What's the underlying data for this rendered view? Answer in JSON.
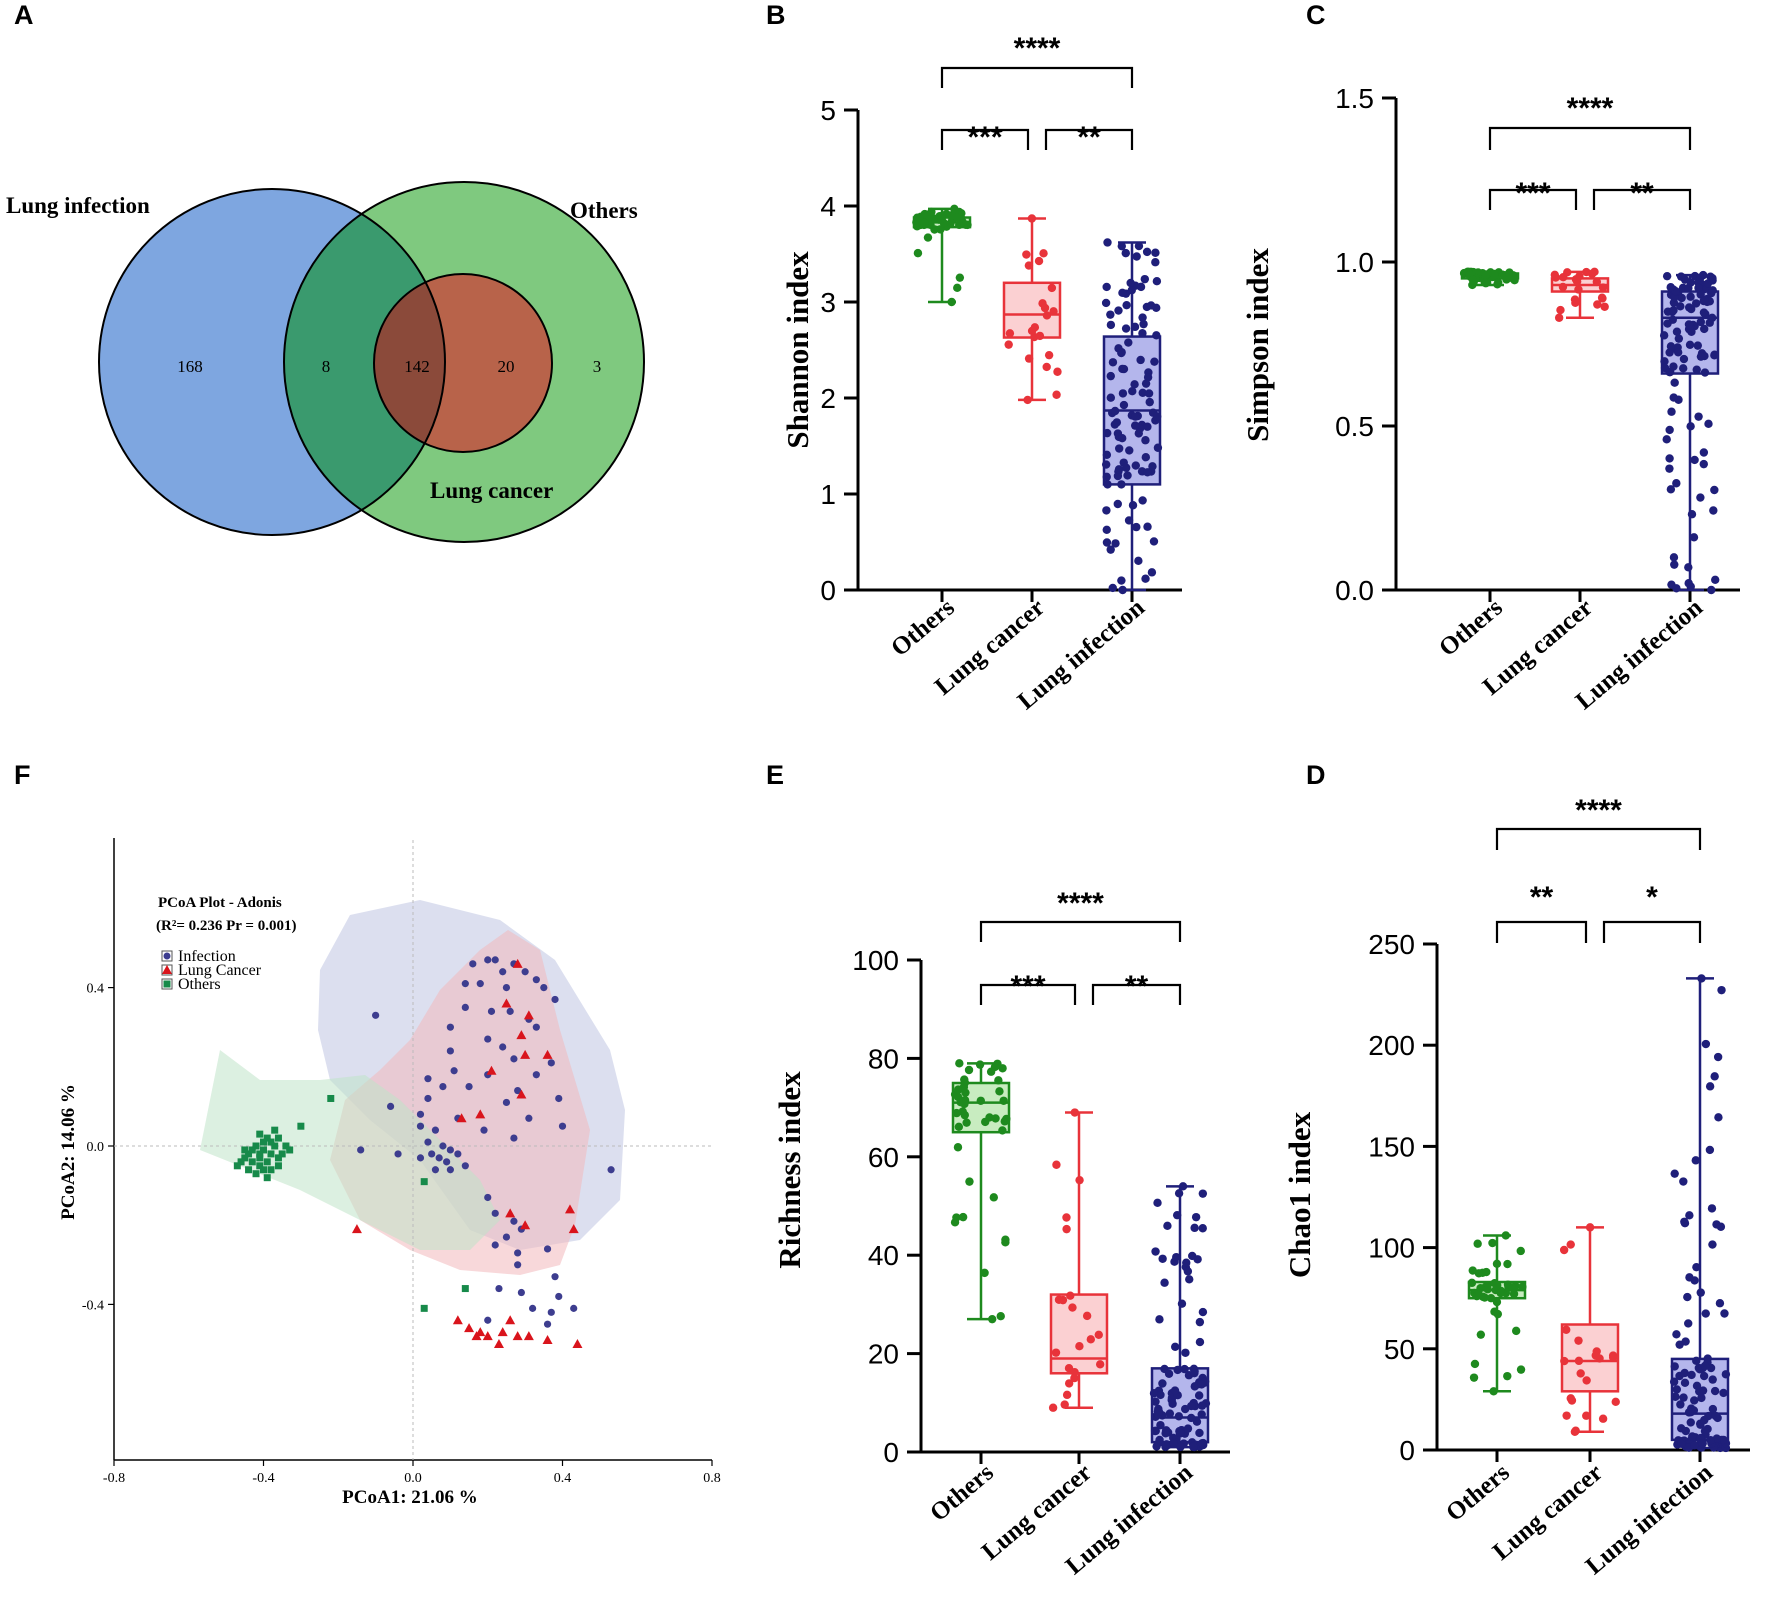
{
  "panels": {
    "A": "A",
    "B": "B",
    "C": "C",
    "D": "D",
    "E": "E",
    "F": "F"
  },
  "colors": {
    "others": "#1e8a1e",
    "cancer": "#e8333a",
    "infection": "#1f1f7a",
    "venn_blue": "#7ea6e0",
    "venn_green": "#7fc97f",
    "venn_overlap": "#3a9a6e",
    "venn_cancer_core": "#b8634a",
    "venn_cancer_overlap": "#8b4a3a"
  },
  "venn": {
    "label_infection": "Lung infection",
    "label_others": "Others",
    "label_cancer": "Lung cancer",
    "count_infection_only": "168",
    "count_infection_others": "8",
    "count_all": "142",
    "count_cancer_others": "20",
    "count_others_only": "3"
  },
  "chart_data": [
    {
      "id": "B",
      "type": "box",
      "ylabel": "Shannon index",
      "ylim": [
        0,
        5
      ],
      "yticks": [
        0,
        1,
        2,
        3,
        4,
        5
      ],
      "categories": [
        "Others",
        "Lung cancer",
        "Lung infection"
      ],
      "boxes": [
        {
          "min": 3.0,
          "q1": 3.78,
          "median": 3.83,
          "q3": 3.88,
          "max": 3.97,
          "n": 45
        },
        {
          "min": 1.98,
          "q1": 2.63,
          "median": 2.87,
          "q3": 3.2,
          "max": 3.87,
          "n": 22
        },
        {
          "min": 0.0,
          "q1": 1.1,
          "median": 1.87,
          "q3": 2.64,
          "max": 3.62,
          "n": 110
        }
      ],
      "significance": [
        {
          "from": 0,
          "to": 1,
          "label": "***"
        },
        {
          "from": 1,
          "to": 2,
          "label": "**"
        },
        {
          "from": 0,
          "to": 2,
          "label": "****"
        }
      ]
    },
    {
      "id": "C",
      "type": "box",
      "ylabel": "Simpson index",
      "ylim": [
        0,
        1.5
      ],
      "yticks": [
        "0.0",
        "0.5",
        "1.0",
        "1.5"
      ],
      "categories": [
        "Others",
        "Lung cancer",
        "Lung infection"
      ],
      "boxes": [
        {
          "min": 0.93,
          "q1": 0.95,
          "median": 0.96,
          "q3": 0.965,
          "max": 0.97,
          "n": 45
        },
        {
          "min": 0.83,
          "q1": 0.91,
          "median": 0.93,
          "q3": 0.95,
          "max": 0.97,
          "n": 22
        },
        {
          "min": 0.0,
          "q1": 0.66,
          "median": 0.83,
          "q3": 0.91,
          "max": 0.96,
          "n": 110
        }
      ],
      "significance": [
        {
          "from": 0,
          "to": 1,
          "label": "***"
        },
        {
          "from": 1,
          "to": 2,
          "label": "**"
        },
        {
          "from": 0,
          "to": 2,
          "label": "****"
        }
      ]
    },
    {
      "id": "E",
      "type": "box",
      "ylabel": "Richness index",
      "ylim": [
        0,
        100
      ],
      "yticks": [
        0,
        20,
        40,
        60,
        80,
        100
      ],
      "categories": [
        "Others",
        "Lung cancer",
        "Lung infection"
      ],
      "boxes": [
        {
          "min": 27,
          "q1": 65,
          "median": 71,
          "q3": 75,
          "max": 79,
          "n": 45
        },
        {
          "min": 9,
          "q1": 16,
          "median": 19,
          "q3": 32,
          "max": 69,
          "n": 22
        },
        {
          "min": 1,
          "q1": 2,
          "median": 7,
          "q3": 17,
          "max": 54,
          "n": 110
        }
      ],
      "significance": [
        {
          "from": 0,
          "to": 1,
          "label": "***"
        },
        {
          "from": 1,
          "to": 2,
          "label": "**"
        },
        {
          "from": 0,
          "to": 2,
          "label": "****"
        }
      ]
    },
    {
      "id": "D",
      "type": "box",
      "ylabel": "Chao1 index",
      "ylim": [
        0,
        250
      ],
      "yticks": [
        0,
        50,
        100,
        150,
        200,
        250
      ],
      "categories": [
        "Others",
        "Lung cancer",
        "Lung infection"
      ],
      "boxes": [
        {
          "min": 29,
          "q1": 75,
          "median": 79,
          "q3": 83,
          "max": 106,
          "n": 45
        },
        {
          "min": 9,
          "q1": 29,
          "median": 44,
          "q3": 62,
          "max": 110,
          "n": 22
        },
        {
          "min": 1,
          "q1": 5,
          "median": 18,
          "q3": 45,
          "max": 233,
          "n": 110
        }
      ],
      "significance": [
        {
          "from": 0,
          "to": 1,
          "label": "**"
        },
        {
          "from": 1,
          "to": 2,
          "label": "*"
        },
        {
          "from": 0,
          "to": 2,
          "label": "****"
        }
      ]
    },
    {
      "id": "F",
      "type": "scatter",
      "title": "PCoA Plot - Adonis",
      "stats_text": "(R²= 0.236    Pr = 0.001)",
      "xlabel": "PCoA1:  21.06 %",
      "ylabel": "PCoA2:  14.06 %",
      "xlim": [
        -0.8,
        0.8
      ],
      "ylim": [
        -0.8,
        0.8
      ],
      "xticks": [
        "-0.8",
        "-0.4",
        "0.0",
        "0.4",
        "0.8"
      ],
      "yticks": [
        "0.4",
        "0.0",
        "-0.4"
      ],
      "legend": [
        "Infection",
        "Lung Cancer",
        "Others"
      ],
      "series": [
        {
          "name": "Infection",
          "points": [
            [
              0.2,
              0.47
            ],
            [
              0.22,
              0.47
            ],
            [
              0.16,
              0.46
            ],
            [
              0.27,
              0.46
            ],
            [
              0.24,
              0.44
            ],
            [
              0.3,
              0.44
            ],
            [
              0.33,
              0.42
            ],
            [
              0.14,
              0.41
            ],
            [
              0.18,
              0.41
            ],
            [
              0.25,
              0.4
            ],
            [
              0.35,
              0.4
            ],
            [
              0.38,
              0.37
            ],
            [
              0.14,
              0.35
            ],
            [
              0.21,
              0.34
            ],
            [
              0.26,
              0.34
            ],
            [
              0.31,
              0.32
            ],
            [
              0.1,
              0.3
            ],
            [
              0.33,
              0.3
            ],
            [
              -0.1,
              0.33
            ],
            [
              0.2,
              0.27
            ],
            [
              0.24,
              0.25
            ],
            [
              0.1,
              0.24
            ],
            [
              0.27,
              0.22
            ],
            [
              0.37,
              0.21
            ],
            [
              0.11,
              0.19
            ],
            [
              0.2,
              0.18
            ],
            [
              0.33,
              0.18
            ],
            [
              0.04,
              0.17
            ],
            [
              0.08,
              0.15
            ],
            [
              0.15,
              0.15
            ],
            [
              0.28,
              0.14
            ],
            [
              0.39,
              0.12
            ],
            [
              0.04,
              0.12
            ],
            [
              0.25,
              0.11
            ],
            [
              0.02,
              0.08
            ],
            [
              0.12,
              0.07
            ],
            [
              0.31,
              0.07
            ],
            [
              0.4,
              0.05
            ],
            [
              -0.06,
              0.1
            ],
            [
              0.02,
              0.05
            ],
            [
              0.06,
              0.04
            ],
            [
              0.19,
              0.04
            ],
            [
              0.27,
              0.02
            ],
            [
              0.04,
              0.01
            ],
            [
              0.08,
              0.0
            ],
            [
              0.1,
              -0.01
            ],
            [
              0.05,
              -0.02
            ],
            [
              0.07,
              -0.03
            ],
            [
              0.09,
              -0.04
            ],
            [
              0.12,
              -0.02
            ],
            [
              -0.04,
              -0.02
            ],
            [
              0.06,
              -0.06
            ],
            [
              0.1,
              -0.06
            ],
            [
              0.14,
              -0.05
            ],
            [
              0.02,
              -0.03
            ],
            [
              -0.14,
              -0.01
            ],
            [
              0.53,
              -0.06
            ],
            [
              0.2,
              -0.13
            ],
            [
              0.22,
              -0.17
            ],
            [
              0.27,
              -0.19
            ],
            [
              0.25,
              -0.23
            ],
            [
              0.28,
              -0.27
            ],
            [
              0.28,
              -0.3
            ],
            [
              0.23,
              -0.36
            ],
            [
              0.29,
              -0.37
            ],
            [
              0.39,
              -0.38
            ],
            [
              0.32,
              -0.41
            ],
            [
              0.37,
              -0.42
            ],
            [
              0.36,
              -0.45
            ],
            [
              0.2,
              -0.44
            ],
            [
              0.38,
              -0.33
            ],
            [
              0.22,
              -0.25
            ],
            [
              0.29,
              -0.21
            ],
            [
              0.36,
              -0.26
            ],
            [
              0.43,
              -0.41
            ]
          ]
        },
        {
          "name": "Lung Cancer",
          "points": [
            [
              0.28,
              0.46
            ],
            [
              0.25,
              0.36
            ],
            [
              0.31,
              0.33
            ],
            [
              0.29,
              0.28
            ],
            [
              0.3,
              0.23
            ],
            [
              0.36,
              0.23
            ],
            [
              0.21,
              0.19
            ],
            [
              0.29,
              0.13
            ],
            [
              0.13,
              0.07
            ],
            [
              0.18,
              0.08
            ],
            [
              0.26,
              -0.17
            ],
            [
              0.42,
              -0.16
            ],
            [
              0.43,
              -0.21
            ],
            [
              0.3,
              -0.2
            ],
            [
              -0.15,
              -0.21
            ],
            [
              0.12,
              -0.44
            ],
            [
              0.15,
              -0.46
            ],
            [
              0.18,
              -0.47
            ],
            [
              0.17,
              -0.48
            ],
            [
              0.2,
              -0.48
            ],
            [
              0.24,
              -0.47
            ],
            [
              0.26,
              -0.44
            ],
            [
              0.28,
              -0.48
            ],
            [
              0.31,
              -0.48
            ],
            [
              0.36,
              -0.49
            ],
            [
              0.44,
              -0.5
            ],
            [
              0.23,
              -0.5
            ]
          ]
        },
        {
          "name": "Others",
          "points": [
            [
              -0.4,
              0.01
            ],
            [
              -0.42,
              0.0
            ],
            [
              -0.44,
              -0.02
            ],
            [
              -0.41,
              -0.03
            ],
            [
              -0.39,
              -0.04
            ],
            [
              -0.43,
              -0.04
            ],
            [
              -0.45,
              -0.03
            ],
            [
              -0.38,
              -0.02
            ],
            [
              -0.36,
              -0.03
            ],
            [
              -0.37,
              0.0
            ],
            [
              -0.39,
              0.02
            ],
            [
              -0.41,
              -0.05
            ],
            [
              -0.43,
              -0.01
            ],
            [
              -0.46,
              -0.04
            ],
            [
              -0.4,
              -0.06
            ],
            [
              -0.38,
              -0.06
            ],
            [
              -0.36,
              -0.05
            ],
            [
              -0.44,
              -0.06
            ],
            [
              -0.42,
              -0.07
            ],
            [
              -0.39,
              -0.08
            ],
            [
              -0.36,
              0.02
            ],
            [
              -0.34,
              0.0
            ],
            [
              -0.35,
              -0.02
            ],
            [
              -0.37,
              0.04
            ],
            [
              -0.4,
              -0.01
            ],
            [
              -0.41,
              0.03
            ],
            [
              -0.45,
              -0.01
            ],
            [
              -0.47,
              -0.05
            ],
            [
              -0.33,
              -0.01
            ],
            [
              -0.3,
              0.05
            ],
            [
              -0.22,
              0.12
            ],
            [
              0.03,
              -0.09
            ],
            [
              0.14,
              -0.36
            ],
            [
              0.03,
              -0.41
            ],
            [
              -0.41,
              -0.02
            ],
            [
              -0.38,
              0.01
            ]
          ]
        }
      ]
    }
  ]
}
